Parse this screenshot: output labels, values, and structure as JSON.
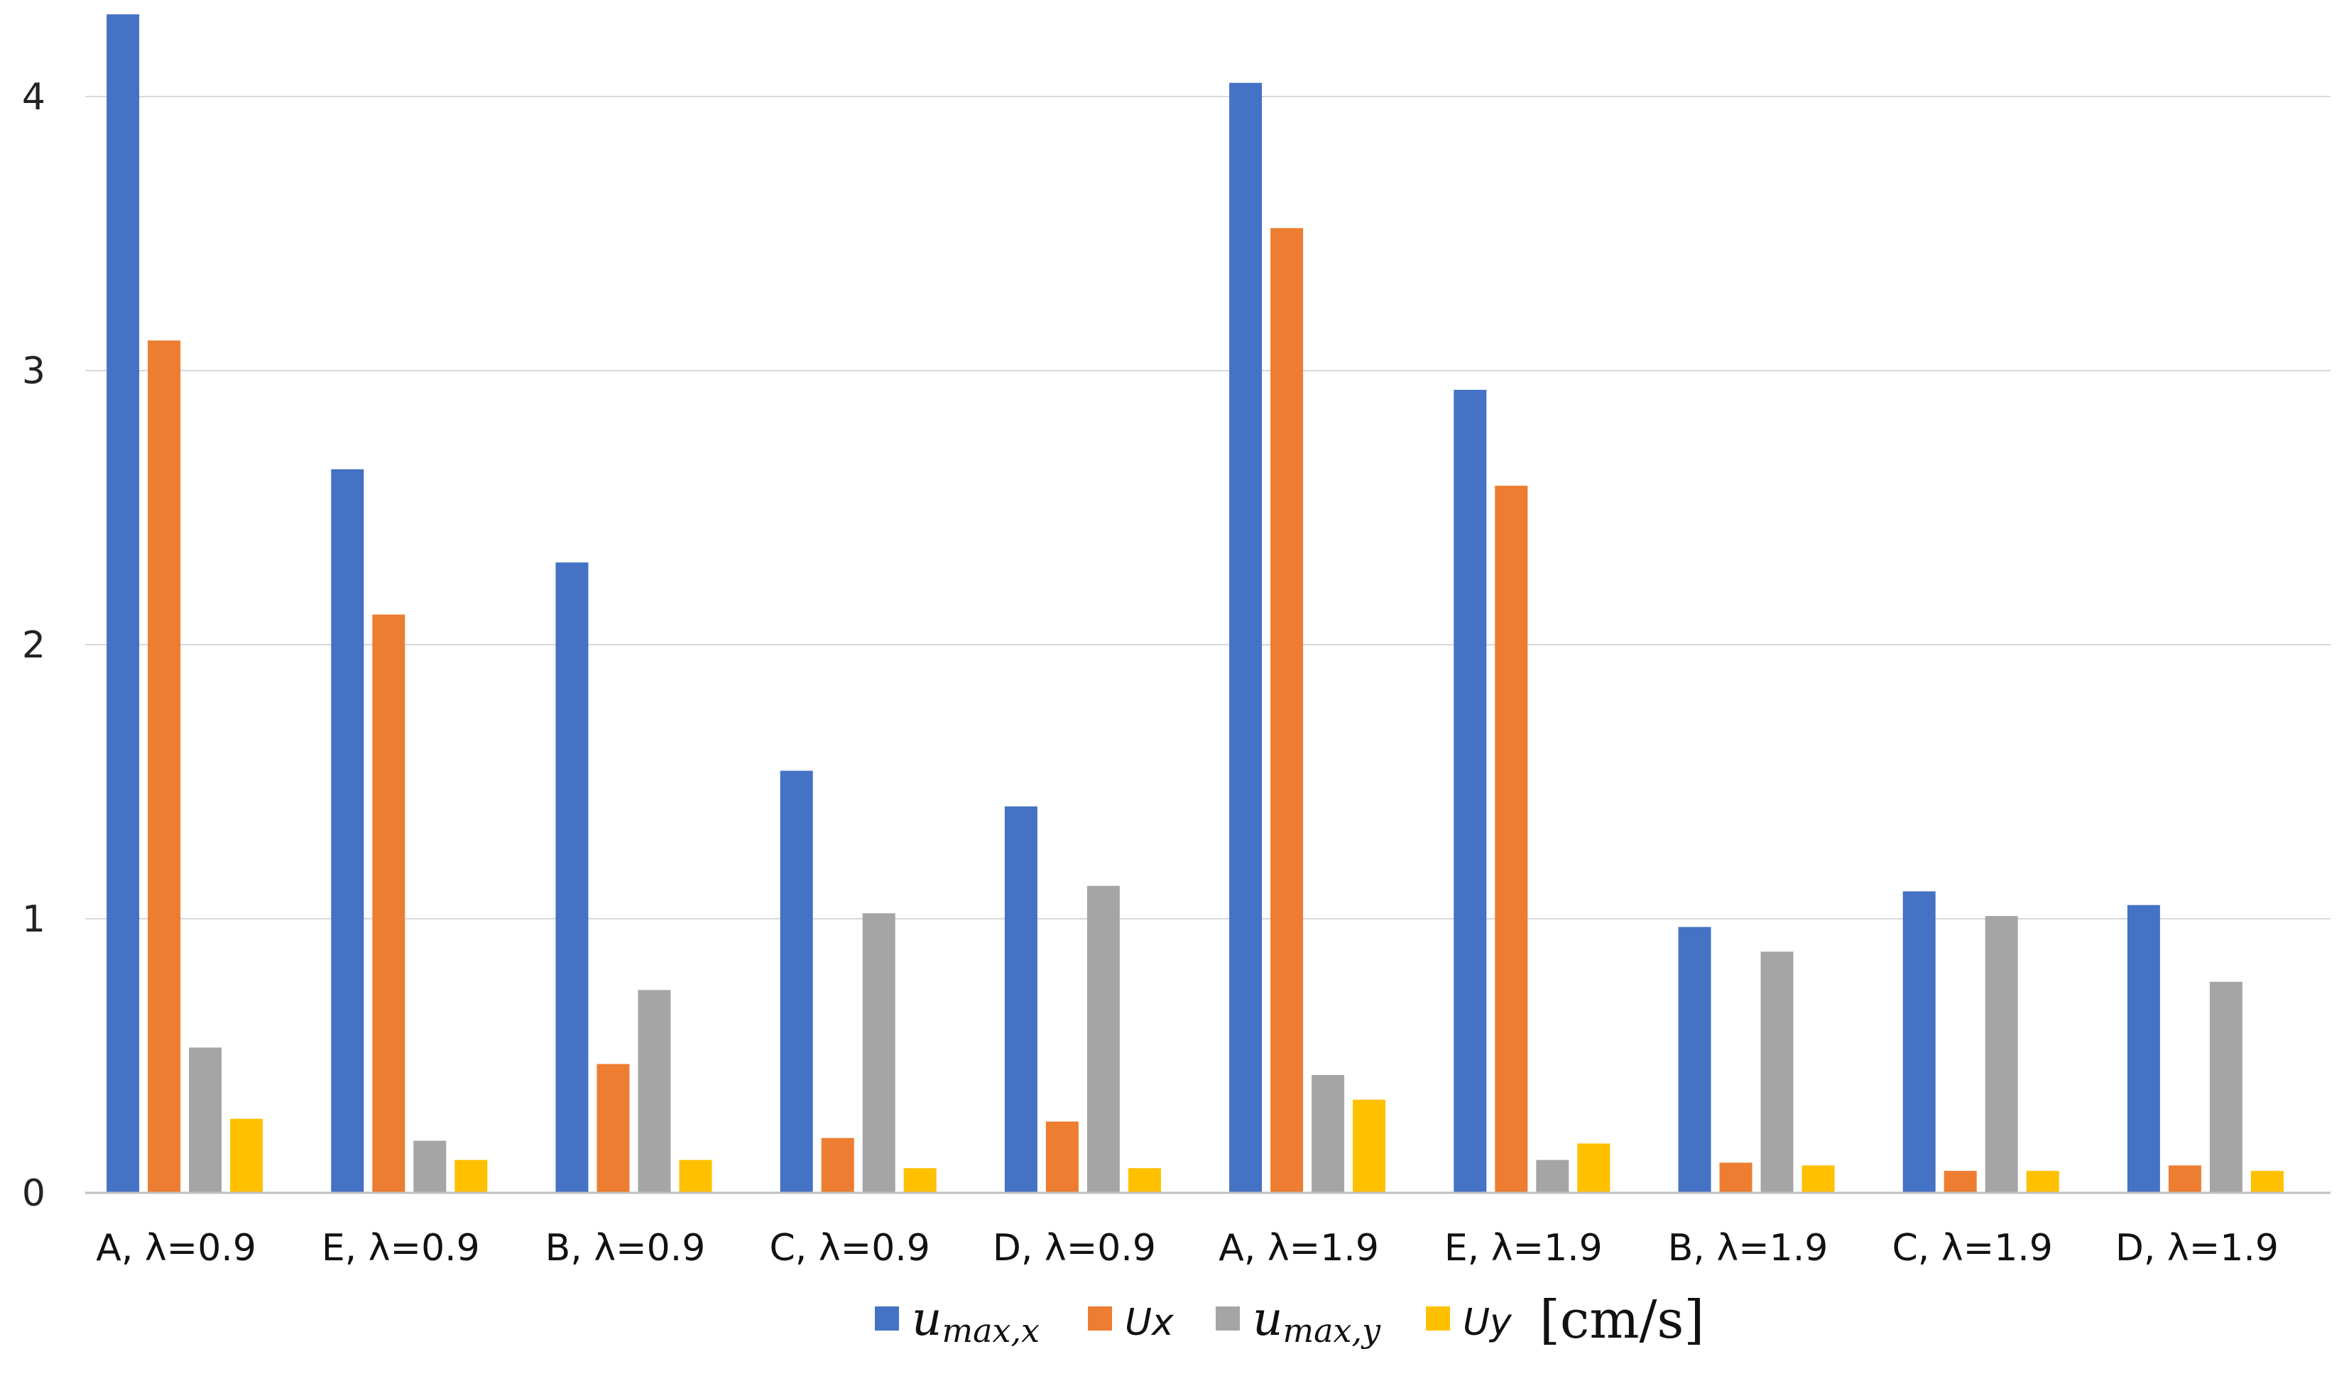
{
  "chart_data": {
    "type": "bar",
    "title": "",
    "xlabel": "",
    "ylabel": "",
    "ylim": [
      0,
      4.3
    ],
    "yticks": [
      0,
      1,
      2,
      3,
      4
    ],
    "grid": true,
    "legend_position": "bottom",
    "unit_label": "[cm/s]",
    "categories": [
      "A, λ=0.9",
      "E, λ=0.9",
      "B, λ=0.9",
      "C, λ=0.9",
      "D, λ=0.9",
      "A, λ=1.9",
      "E, λ=1.9",
      "B, λ=1.9",
      "C, λ=1.9",
      "D, λ=1.9"
    ],
    "series": [
      {
        "name": "umax,x",
        "label_main": "u",
        "label_sub": "max,x",
        "color": "#4472C4",
        "values": [
          4.3,
          2.64,
          2.3,
          1.54,
          1.41,
          4.05,
          2.93,
          0.97,
          1.1,
          1.05
        ]
      },
      {
        "name": "Ux",
        "label_main": "Ux",
        "label_sub": "",
        "color": "#ED7D31",
        "values": [
          3.11,
          2.11,
          0.47,
          0.2,
          0.26,
          3.52,
          2.58,
          0.11,
          0.08,
          0.1
        ]
      },
      {
        "name": "umax,y",
        "label_main": "u",
        "label_sub": "max,y",
        "color": "#A5A5A5",
        "values": [
          0.53,
          0.19,
          0.74,
          1.02,
          1.12,
          0.43,
          0.12,
          0.88,
          1.01,
          0.77
        ]
      },
      {
        "name": "Uy",
        "label_main": "Uy",
        "label_sub": "",
        "color": "#FFC000",
        "values": [
          0.27,
          0.12,
          0.12,
          0.09,
          0.09,
          0.34,
          0.18,
          0.1,
          0.08,
          0.08
        ]
      }
    ]
  }
}
